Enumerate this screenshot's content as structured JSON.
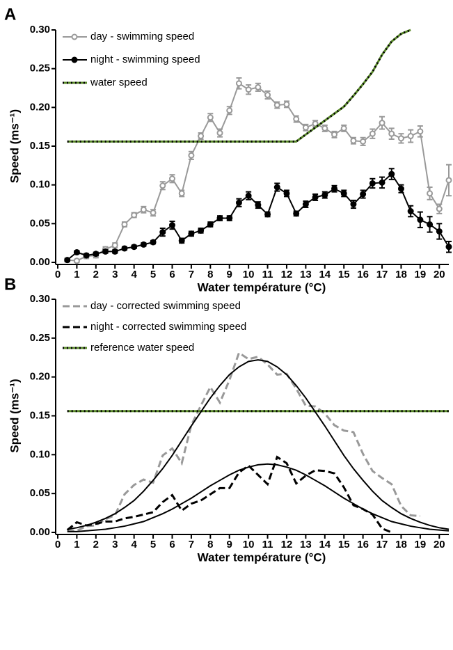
{
  "chart_data": [
    {
      "type": "line",
      "panel_label": "A",
      "xlabel": "Water température (°C)",
      "ylabel": "Speed (ms⁻¹)",
      "xlim": [
        0,
        20.5
      ],
      "ylim": [
        0,
        0.3
      ],
      "xticks": [
        0,
        1,
        2,
        3,
        4,
        5,
        6,
        7,
        8,
        9,
        10,
        11,
        12,
        13,
        14,
        15,
        16,
        17,
        18,
        19,
        20
      ],
      "yticks": [
        {
          "value": 0,
          "label": "0.00"
        },
        {
          "value": 0.05,
          "label": "0.05"
        },
        {
          "value": 0.1,
          "label": "0.10"
        },
        {
          "value": 0.15,
          "label": "0.15"
        },
        {
          "value": 0.2,
          "label": "0.20"
        },
        {
          "value": 0.25,
          "label": "0.25"
        },
        {
          "value": 0.3,
          "label": "0.30"
        }
      ],
      "legend": "upper left",
      "x": [
        0.5,
        1,
        1.5,
        2,
        2.5,
        3,
        3.5,
        4,
        4.5,
        5,
        5.5,
        6,
        6.5,
        7,
        7.5,
        8,
        8.5,
        9,
        9.5,
        10,
        10.5,
        11,
        11.5,
        12,
        12.5,
        13,
        13.5,
        14,
        14.5,
        15,
        15.5,
        16,
        16.5,
        17,
        17.5,
        18,
        18.5,
        19,
        19.5,
        20,
        20.5
      ],
      "series": [
        {
          "name": "day - swimming speed",
          "color": "#999999",
          "marker": "open-circle",
          "values": [
            0.003,
            0.002,
            0.008,
            0.009,
            0.017,
            0.022,
            0.049,
            0.061,
            0.068,
            0.064,
            0.099,
            0.108,
            0.089,
            0.138,
            0.163,
            0.187,
            0.167,
            0.196,
            0.231,
            0.223,
            0.226,
            0.216,
            0.203,
            0.204,
            0.185,
            0.174,
            0.179,
            0.173,
            0.165,
            0.173,
            0.157,
            0.156,
            0.166,
            0.18,
            0.166,
            0.16,
            0.163,
            0.169,
            0.089,
            0.069,
            0.106
          ],
          "errors": [
            0.002,
            0.002,
            0.003,
            0.003,
            0.003,
            0.003,
            0.003,
            0.003,
            0.004,
            0.004,
            0.005,
            0.005,
            0.004,
            0.005,
            0.004,
            0.005,
            0.005,
            0.005,
            0.007,
            0.006,
            0.005,
            0.005,
            0.004,
            0.004,
            0.004,
            0.004,
            0.004,
            0.004,
            0.004,
            0.004,
            0.004,
            0.005,
            0.006,
            0.008,
            0.007,
            0.006,
            0.008,
            0.007,
            0.008,
            0.006,
            0.02
          ]
        },
        {
          "name": "night - swimming speed",
          "color": "#000000",
          "marker": "circle",
          "values": [
            0.003,
            0.013,
            0.009,
            0.011,
            0.014,
            0.014,
            0.018,
            0.02,
            0.023,
            0.026,
            0.039,
            0.048,
            0.028,
            0.037,
            0.041,
            0.049,
            0.057,
            0.057,
            0.077,
            0.086,
            0.074,
            0.062,
            0.097,
            0.089,
            0.063,
            0.075,
            0.084,
            0.087,
            0.095,
            0.089,
            0.075,
            0.088,
            0.102,
            0.103,
            0.114,
            0.095,
            0.066,
            0.055,
            0.049,
            0.04,
            0.02
          ],
          "errors": [
            0.002,
            0.002,
            0.002,
            0.002,
            0.002,
            0.002,
            0.002,
            0.002,
            0.002,
            0.002,
            0.005,
            0.005,
            0.003,
            0.003,
            0.003,
            0.003,
            0.003,
            0.003,
            0.005,
            0.005,
            0.004,
            0.003,
            0.005,
            0.004,
            0.003,
            0.004,
            0.004,
            0.004,
            0.004,
            0.004,
            0.005,
            0.005,
            0.006,
            0.007,
            0.007,
            0.005,
            0.007,
            0.01,
            0.01,
            0.01,
            0.007
          ]
        },
        {
          "name": "water speed",
          "color": "#5a8a2a",
          "dash": "green-black",
          "x": [
            0.5,
            12.5,
            13,
            13.5,
            14,
            14.5,
            15,
            15.5,
            16,
            16.5,
            17,
            17.5,
            18,
            18.5
          ],
          "values": [
            0.156,
            0.156,
            0.165,
            0.174,
            0.183,
            0.192,
            0.201,
            0.215,
            0.23,
            0.246,
            0.268,
            0.285,
            0.295,
            0.3
          ]
        }
      ]
    },
    {
      "type": "line",
      "panel_label": "B",
      "xlabel": "Water température (°C)",
      "ylabel": "Speed (ms⁻¹)",
      "xlim": [
        0,
        20.5
      ],
      "ylim": [
        0,
        0.3
      ],
      "xticks": [
        0,
        1,
        2,
        3,
        4,
        5,
        6,
        7,
        8,
        9,
        10,
        11,
        12,
        13,
        14,
        15,
        16,
        17,
        18,
        19,
        20
      ],
      "yticks": [
        {
          "value": 0,
          "label": "0.00"
        },
        {
          "value": 0.05,
          "label": "0.05"
        },
        {
          "value": 0.1,
          "label": "0.10"
        },
        {
          "value": 0.15,
          "label": "0.15"
        },
        {
          "value": 0.2,
          "label": "0.20"
        },
        {
          "value": 0.25,
          "label": "0.25"
        },
        {
          "value": 0.3,
          "label": "0.30"
        }
      ],
      "legend": "upper left",
      "x": [
        0.5,
        1,
        1.5,
        2,
        2.5,
        3,
        3.5,
        4,
        4.5,
        5,
        5.5,
        6,
        6.5,
        7,
        7.5,
        8,
        8.5,
        9,
        9.5,
        10,
        10.5,
        11,
        11.5,
        12,
        12.5,
        13,
        13.5,
        14,
        14.5,
        15,
        15.5,
        16,
        16.5,
        17,
        17.5,
        18,
        18.5,
        19,
        19.5,
        20,
        20.5
      ],
      "series": [
        {
          "name": "day - corrected swimming speed",
          "color": "#999999",
          "dash": "long",
          "values": [
            0.003,
            0.002,
            0.008,
            0.009,
            0.017,
            0.022,
            0.049,
            0.061,
            0.068,
            0.064,
            0.099,
            0.108,
            0.089,
            0.138,
            0.163,
            0.187,
            0.167,
            0.196,
            0.231,
            0.223,
            0.226,
            0.216,
            0.203,
            0.204,
            0.185,
            0.163,
            0.162,
            0.153,
            0.138,
            0.131,
            0.129,
            0.101,
            0.079,
            0.07,
            0.062,
            0.034,
            0.022,
            0.021,
            null,
            null,
            null
          ]
        },
        {
          "name": "night - corrected swimming speed",
          "color": "#000000",
          "dash": "long",
          "values": [
            0.003,
            0.013,
            0.009,
            0.011,
            0.014,
            0.014,
            0.018,
            0.02,
            0.023,
            0.026,
            0.039,
            0.048,
            0.028,
            0.037,
            0.041,
            0.049,
            0.057,
            0.057,
            0.077,
            0.086,
            0.074,
            0.062,
            0.097,
            0.089,
            0.063,
            0.073,
            0.08,
            0.079,
            0.076,
            0.058,
            0.035,
            0.03,
            0.023,
            0.005,
            0,
            null,
            null,
            null,
            null,
            null,
            null
          ]
        },
        {
          "name": "reference water speed",
          "color": "#5a8a2a",
          "dash": "green-black",
          "x": [
            0.5,
            20.5
          ],
          "values": [
            0.156,
            0.156
          ]
        },
        {
          "color": "#000000",
          "values": [
            0.004,
            0.006,
            0.009,
            0.013,
            0.018,
            0.024,
            0.032,
            0.041,
            0.053,
            0.067,
            0.082,
            0.099,
            0.118,
            0.137,
            0.155,
            0.173,
            0.189,
            0.203,
            0.213,
            0.22,
            0.222,
            0.22,
            0.213,
            0.203,
            0.189,
            0.173,
            0.155,
            0.137,
            0.118,
            0.099,
            0.082,
            0.067,
            0.053,
            0.041,
            0.032,
            0.024,
            0.018,
            0.013,
            0.009,
            0.006,
            0.004
          ]
        },
        {
          "color": "#000000",
          "values": [
            0.001,
            0.001,
            0.002,
            0.003,
            0.004,
            0.006,
            0.008,
            0.011,
            0.014,
            0.019,
            0.024,
            0.03,
            0.037,
            0.044,
            0.052,
            0.06,
            0.067,
            0.074,
            0.08,
            0.084,
            0.087,
            0.088,
            0.087,
            0.084,
            0.08,
            0.074,
            0.067,
            0.06,
            0.052,
            0.044,
            0.037,
            0.03,
            0.024,
            0.019,
            0.014,
            0.011,
            0.008,
            0.006,
            0.004,
            0.003,
            0.002
          ]
        }
      ]
    }
  ]
}
